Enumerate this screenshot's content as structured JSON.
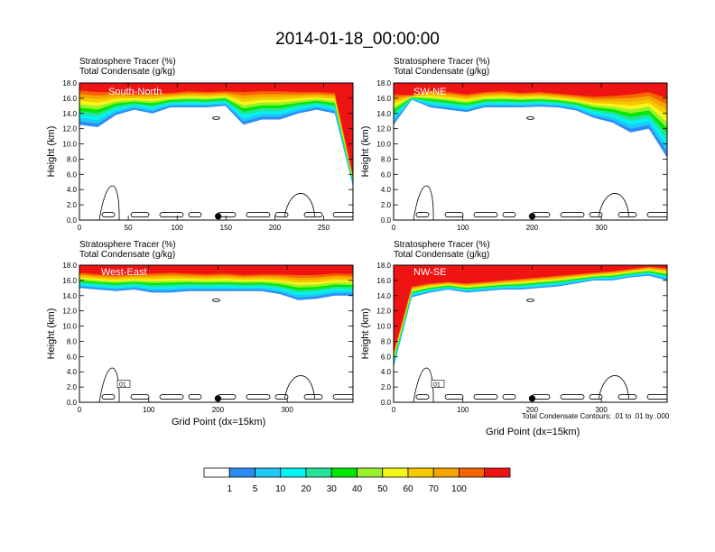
{
  "title": "2014-01-18_00:00:00",
  "panel_subtitle_1": "Stratosphere Tracer   (%)",
  "panel_subtitle_2": "Total Condensate   (g/kg)",
  "contour_note": "Total Condensate Contours: .01 to .01 by .000",
  "colorbar": {
    "colors": [
      "#ffffff",
      "#2c8cf5",
      "#21c8f7",
      "#00f4f4",
      "#24e49c",
      "#00e800",
      "#9bf02c",
      "#f6f61a",
      "#f6c800",
      "#f6a400",
      "#f66400",
      "#ee1414"
    ],
    "labels": [
      "1",
      "5",
      "10",
      "20",
      "30",
      "40",
      "50",
      "60",
      "70",
      "100"
    ]
  },
  "chart_data": [
    {
      "type": "heatmap",
      "label": "South-North",
      "title": "",
      "xlabel": "",
      "ylabel": "Height (km)",
      "xlim": [
        0,
        280
      ],
      "ylim": [
        0,
        18
      ],
      "xticks": [
        "0",
        "50",
        "100",
        "150",
        "200",
        "250"
      ],
      "xtick_values": [
        0,
        50,
        100,
        150,
        200,
        250
      ],
      "yticks": [
        "0.0",
        "2.0",
        "4.0",
        "6.0",
        "8.0",
        "10.0",
        "12.0",
        "14.0",
        "16.0",
        "18.0"
      ],
      "tracer_100_base_km": [
        17.0,
        16.8,
        16.8,
        16.6,
        16.7,
        16.7,
        16.9,
        16.8,
        16.9,
        16.8,
        16.9,
        16.9,
        16.8,
        16.8,
        16.7,
        5.8
      ],
      "tracer_1_base_km": [
        12.5,
        12.2,
        13.8,
        14.5,
        14.0,
        14.8,
        14.8,
        14.8,
        15.0,
        12.5,
        13.2,
        13.2,
        14.0,
        14.5,
        14.0,
        4.4
      ],
      "point_x": 142,
      "contour_label": ""
    },
    {
      "type": "heatmap",
      "label": "SW-NE",
      "title": "",
      "xlabel": "",
      "ylabel": "Height (km)",
      "xlim": [
        0,
        395
      ],
      "ylim": [
        0,
        18
      ],
      "xticks": [
        "0",
        "100",
        "200",
        "300"
      ],
      "xtick_values": [
        0,
        100,
        200,
        300
      ],
      "yticks": [
        "0.0",
        "2.0",
        "4.0",
        "6.0",
        "8.0",
        "10.0",
        "12.0",
        "14.0",
        "16.0",
        "18.0"
      ],
      "tracer_100_base_km": [
        16.5,
        16.4,
        17.0,
        16.8,
        16.5,
        16.8,
        16.9,
        16.7,
        16.8,
        16.6,
        16.4,
        16.2,
        16.3,
        16.5,
        16.8,
        16.0
      ],
      "tracer_1_base_km": [
        12.5,
        15.8,
        14.8,
        14.5,
        14.2,
        14.8,
        14.8,
        14.8,
        14.9,
        14.8,
        14.4,
        13.4,
        12.8,
        11.5,
        12.0,
        8.2
      ],
      "point_x": 200,
      "contour_label": ""
    },
    {
      "type": "heatmap",
      "label": "West-East",
      "title": "",
      "xlabel": "Grid Point (dx=15km)",
      "ylabel": "Height (km)",
      "xlim": [
        0,
        395
      ],
      "ylim": [
        0,
        18
      ],
      "xticks": [
        "0",
        "100",
        "200",
        "300"
      ],
      "xtick_values": [
        0,
        100,
        200,
        300
      ],
      "yticks": [
        "0.0",
        "2.0",
        "4.0",
        "6.0",
        "8.0",
        "10.0",
        "12.0",
        "14.0",
        "16.0",
        "18.0"
      ],
      "tracer_100_base_km": [
        17.0,
        16.8,
        16.7,
        16.8,
        16.9,
        17.0,
        16.9,
        16.8,
        16.9,
        16.7,
        16.8,
        16.8,
        16.7,
        16.7,
        16.9,
        16.8
      ],
      "tracer_1_base_km": [
        15.0,
        14.8,
        14.6,
        14.8,
        14.4,
        14.4,
        14.6,
        14.6,
        14.6,
        14.6,
        14.6,
        14.2,
        13.4,
        13.6,
        14.0,
        14.0
      ],
      "point_x": 200,
      "contour_label": "01"
    },
    {
      "type": "heatmap",
      "label": "NW-SE",
      "title": "",
      "xlabel": "Grid Point (dx=15km)",
      "ylabel": "Height (km)",
      "xlim": [
        0,
        395
      ],
      "ylim": [
        0,
        18
      ],
      "xticks": [
        "0",
        "100",
        "200",
        "300"
      ],
      "xtick_values": [
        0,
        100,
        200,
        300
      ],
      "yticks": [
        "0.0",
        "2.0",
        "4.0",
        "6.0",
        "8.0",
        "10.0",
        "12.0",
        "14.0",
        "16.0",
        "18.0"
      ],
      "tracer_100_base_km": [
        6.5,
        15.2,
        15.6,
        15.8,
        15.6,
        15.8,
        16.0,
        16.2,
        16.4,
        16.6,
        16.8,
        17.0,
        17.2,
        17.5,
        17.8,
        17.6
      ],
      "tracer_1_base_km": [
        4.6,
        13.8,
        14.4,
        14.8,
        14.4,
        14.6,
        14.8,
        14.8,
        15.0,
        15.2,
        15.6,
        16.0,
        16.0,
        16.4,
        16.6,
        16.0
      ],
      "point_x": 200,
      "contour_label": "01"
    }
  ]
}
